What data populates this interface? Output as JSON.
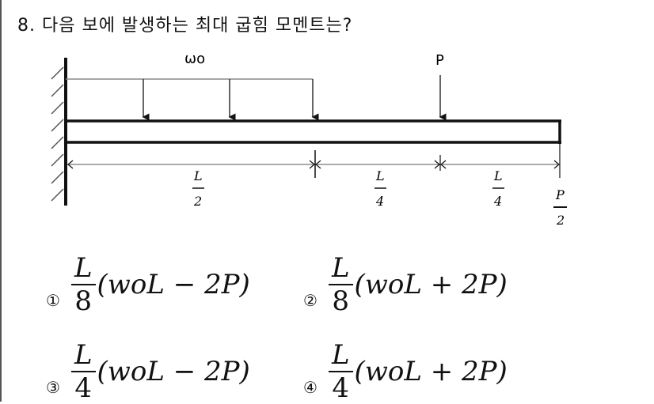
{
  "question": {
    "text": "8. 다음 보에 발생하는 최대 굽힘 모멘트는?"
  },
  "diagram": {
    "load_label": "ωo",
    "point_load_label": "P",
    "dims": [
      {
        "num": "L",
        "den": "2"
      },
      {
        "num": "L",
        "den": "4"
      },
      {
        "num": "L",
        "den": "4"
      }
    ],
    "end_load": {
      "num": "P",
      "den": "2"
    }
  },
  "options": [
    {
      "marker": "①",
      "num": "L",
      "den": "8",
      "expr": "(woL − 2P)"
    },
    {
      "marker": "②",
      "num": "L",
      "den": "8",
      "expr": "(woL + 2P)"
    },
    {
      "marker": "③",
      "num": "L",
      "den": "4",
      "expr": "(woL − 2P)"
    },
    {
      "marker": "④",
      "num": "L",
      "den": "4",
      "expr": "(woL + 2P)"
    }
  ]
}
